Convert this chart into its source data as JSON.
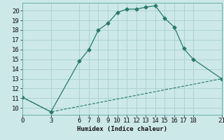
{
  "xlabel": "Humidex (Indice chaleur)",
  "bg_color": "#cce8e8",
  "grid_color": "#aacfcf",
  "line_color": "#2a7a6a",
  "curve_x": [
    0,
    3,
    6,
    7,
    8,
    9,
    10,
    11,
    12,
    13,
    14,
    15,
    16,
    17,
    18,
    21
  ],
  "curve_y": [
    11.1,
    9.6,
    14.8,
    16.0,
    18.0,
    18.7,
    19.8,
    20.15,
    20.15,
    20.35,
    20.5,
    19.2,
    18.3,
    16.1,
    15.0,
    13.0
  ],
  "baseline_x": [
    0,
    3,
    21
  ],
  "baseline_y": [
    11.1,
    9.6,
    13.0
  ],
  "xlim": [
    0,
    21
  ],
  "ylim": [
    9.3,
    20.8
  ],
  "xticks": [
    0,
    3,
    6,
    7,
    8,
    9,
    10,
    11,
    12,
    13,
    14,
    15,
    16,
    17,
    18,
    21
  ],
  "yticks": [
    10,
    11,
    12,
    13,
    14,
    15,
    16,
    17,
    18,
    19,
    20
  ],
  "fontsize": 6.5
}
